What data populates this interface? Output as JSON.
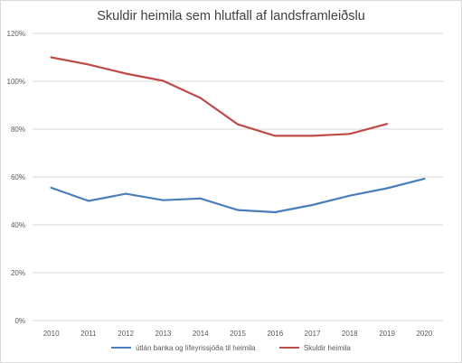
{
  "chart_data": {
    "type": "line",
    "title": "Skuldir  heimila sem hlutfall af landsframleiðslu",
    "x": [
      "2010",
      "2011",
      "2012",
      "2013",
      "2014",
      "2015",
      "2016",
      "2017",
      "2018",
      "2019",
      "2020"
    ],
    "ylim": [
      0,
      120
    ],
    "yticks": [
      "0%",
      "20%",
      "40%",
      "60%",
      "80%",
      "100%",
      "120%"
    ],
    "ytick_values": [
      0,
      20,
      40,
      60,
      80,
      100,
      120
    ],
    "grid": true,
    "legend_position": "bottom",
    "series": [
      {
        "name": "útlán banka og lífeyrissjóða til heimila",
        "color": "#4a7ebb",
        "values": [
          55.5,
          50,
          53,
          50.3,
          51,
          46.2,
          45.3,
          48.3,
          52.2,
          55.3,
          59.3
        ]
      },
      {
        "name": "Skuldir heimila",
        "color": "#be4b48",
        "values": [
          110,
          107,
          103.2,
          100.2,
          93,
          82,
          77.2,
          77.2,
          78,
          82.2,
          null
        ]
      }
    ]
  }
}
